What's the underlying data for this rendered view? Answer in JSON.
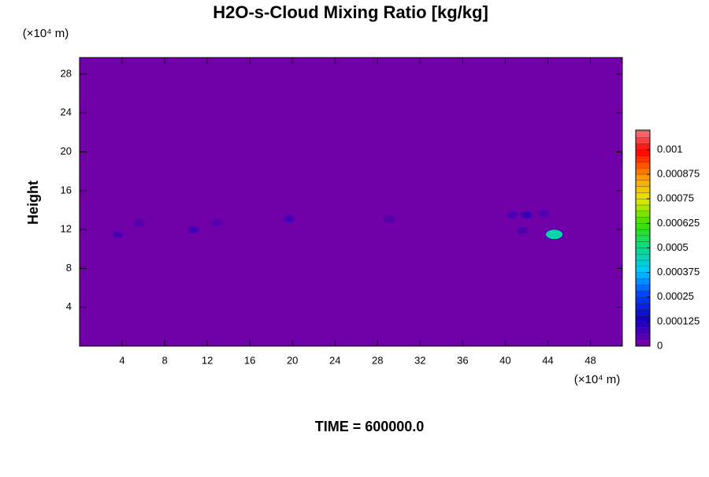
{
  "chart_data": {
    "type": "contour",
    "title": "H2O-s-Cloud Mixing Ratio [kg/kg]",
    "y_label": "Height",
    "x_unit": "(×10⁴ m)",
    "y_unit": "(×10⁴ m)",
    "footer": "TIME = 600000.0",
    "background_color": "#7000a8",
    "xlim": [
      0,
      51
    ],
    "xticks": [
      4,
      8,
      12,
      16,
      20,
      24,
      28,
      32,
      36,
      40,
      44,
      48
    ],
    "ylim": [
      0,
      29.7
    ],
    "yticks": [
      4,
      8,
      12,
      16,
      20,
      24,
      28
    ],
    "x": [
      3.6,
      5.6,
      10.7,
      12.9,
      19.7,
      29.1,
      40.7,
      42.0,
      43.6,
      41.6,
      44.6
    ],
    "y": [
      11.5,
      12.7,
      12.0,
      12.7,
      13.1,
      13.1,
      13.5,
      13.5,
      13.7,
      11.9,
      11.5
    ],
    "values": [
      5e-05,
      3e-05,
      6e-05,
      3e-05,
      6e-05,
      3e-05,
      5e-05,
      8e-05,
      4e-05,
      4e-05,
      0.00045
    ],
    "colorbar": {
      "lim": [
        0,
        0.0011
      ],
      "step": 3.125e-05,
      "ticks": [
        0,
        0.000125,
        0.00025,
        0.000375,
        0.0005,
        0.000625,
        0.00075,
        0.000875,
        0.001
      ],
      "colormap": [
        "#7000a8",
        "#1000c0",
        "#0040ff",
        "#00c8ff",
        "#00e080",
        "#40e000",
        "#e8e800",
        "#ff9000",
        "#ff0000",
        "#ff9090"
      ]
    }
  }
}
